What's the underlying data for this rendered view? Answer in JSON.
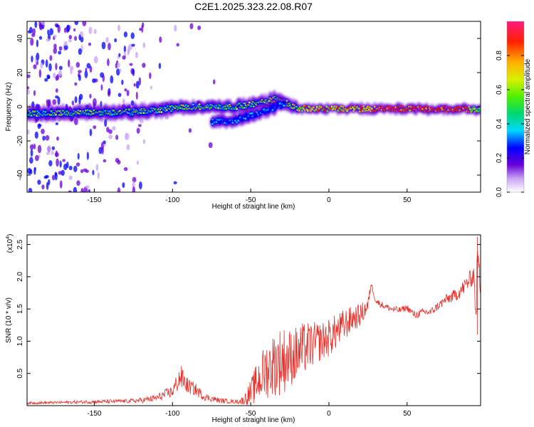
{
  "title": "C2E1.2025.323.22.08.R07",
  "chart_data": [
    {
      "type": "heatmap",
      "xlabel": "Height of straight line (km)",
      "ylabel": "Frequency (Hz)",
      "xlim": [
        -193,
        97
      ],
      "ylim": [
        -50,
        50
      ],
      "xticks": [
        -150,
        -100,
        -50,
        0,
        50
      ],
      "yticks": [
        -40,
        -20,
        0,
        20,
        40
      ],
      "xtick_labels": [
        "-150",
        "-100",
        "-50",
        "0",
        "50"
      ],
      "ytick_labels": [
        "-40",
        "-20",
        "0",
        "20",
        "40"
      ],
      "colorbar": {
        "label": "Normalized spectral amplitude",
        "range": [
          0,
          1
        ],
        "ticks": [
          0.0,
          0.2,
          0.4,
          0.6,
          0.8
        ],
        "tick_labels": [
          "0.0",
          "0.2",
          "0.4",
          "0.6",
          "0.8"
        ]
      },
      "traces": [
        {
          "name": "main-echo",
          "x_range": [
            -193,
            97
          ],
          "center_hz": [
            [
              -193,
              -4
            ],
            [
              -120,
              -3
            ],
            [
              -90,
              0
            ],
            [
              -60,
              0
            ],
            [
              -45,
              2
            ],
            [
              -32,
              5
            ],
            [
              -25,
              1
            ],
            [
              -20,
              -1
            ],
            [
              97,
              -1.5
            ]
          ],
          "peak_amplitude": 0.9
        },
        {
          "name": "secondary-echo",
          "x_range": [
            -75,
            -28
          ],
          "center_hz": [
            [
              -75,
              -9
            ],
            [
              -60,
              -8
            ],
            [
              -45,
              -4
            ],
            [
              -32,
              1
            ]
          ],
          "peak_amplitude": 0.45
        }
      ]
    },
    {
      "type": "line",
      "xlabel": "Height of straight line (km)",
      "ylabel": "SNR (10 * v/v)",
      "y_multiplier": "(x10",
      "y_multiplier_exp": "4",
      "y_multiplier_close": ")",
      "xlim": [
        -193,
        97
      ],
      "ylim": [
        0,
        2.65
      ],
      "xticks": [
        -150,
        -100,
        -50,
        0,
        50
      ],
      "yticks": [
        0.5,
        1.0,
        1.5,
        2.0,
        2.5
      ],
      "xtick_labels": [
        "-150",
        "-100",
        "-50",
        "0",
        "50"
      ],
      "ytick_labels": [
        "0.5",
        "1.0",
        "1.5",
        "2.0",
        "2.5"
      ],
      "series": [
        {
          "name": "SNR",
          "color": "#e8302a",
          "x": [
            -193,
            -170,
            -150,
            -130,
            -120,
            -110,
            -100,
            -95,
            -90,
            -85,
            -80,
            -70,
            -60,
            -55,
            -50,
            -45,
            -40,
            -35,
            -30,
            -25,
            -20,
            -15,
            -10,
            -5,
            0,
            5,
            10,
            15,
            20,
            25,
            27,
            30,
            35,
            40,
            45,
            50,
            55,
            60,
            65,
            70,
            75,
            80,
            85,
            90,
            93,
            94,
            95,
            97
          ],
          "y": [
            0.04,
            0.05,
            0.06,
            0.07,
            0.08,
            0.12,
            0.22,
            0.45,
            0.3,
            0.25,
            0.14,
            0.08,
            0.06,
            0.08,
            0.2,
            0.4,
            0.55,
            0.65,
            0.7,
            0.75,
            0.8,
            0.9,
            0.95,
            1.0,
            1.05,
            1.15,
            1.25,
            1.35,
            1.4,
            1.55,
            1.9,
            1.62,
            1.55,
            1.5,
            1.48,
            1.52,
            1.4,
            1.45,
            1.45,
            1.55,
            1.65,
            1.7,
            1.8,
            1.95,
            2.05,
            1.2,
            2.4,
            1.8
          ],
          "noise": [
            0.02,
            0.02,
            0.03,
            0.03,
            0.04,
            0.06,
            0.1,
            0.2,
            0.12,
            0.1,
            0.06,
            0.04,
            0.03,
            0.06,
            0.2,
            0.35,
            0.45,
            0.5,
            0.55,
            0.45,
            0.45,
            0.4,
            0.35,
            0.3,
            0.3,
            0.28,
            0.25,
            0.2,
            0.18,
            0.12,
            0.04,
            0.05,
            0.05,
            0.05,
            0.05,
            0.05,
            0.06,
            0.06,
            0.06,
            0.07,
            0.08,
            0.1,
            0.12,
            0.14,
            0.16,
            0.2,
            0.25,
            0.15
          ]
        }
      ]
    }
  ]
}
